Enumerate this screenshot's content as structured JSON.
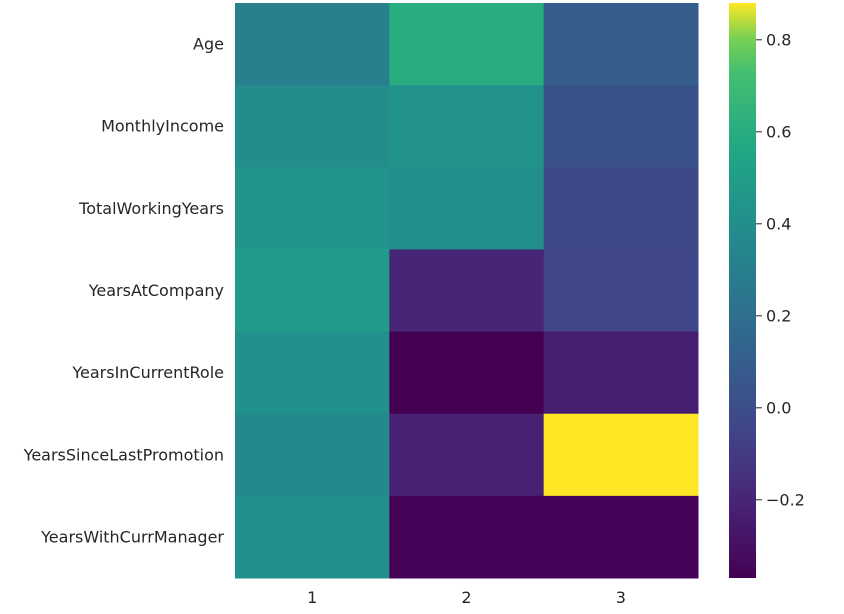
{
  "chart_data": {
    "type": "heatmap",
    "title": "",
    "xlabel": "",
    "ylabel": "",
    "x_categories": [
      "1",
      "2",
      "3"
    ],
    "y_categories": [
      "Age",
      "MonthlyIncome",
      "TotalWorkingYears",
      "YearsAtCompany",
      "YearsInCurrentRole",
      "YearsSinceLastPromotion",
      "YearsWithCurrManager"
    ],
    "values": [
      [
        0.3,
        0.6,
        0.1
      ],
      [
        0.39,
        0.43,
        0.02
      ],
      [
        0.44,
        0.41,
        -0.03
      ],
      [
        0.48,
        -0.2,
        -0.04
      ],
      [
        0.42,
        -0.37,
        -0.23
      ],
      [
        0.36,
        -0.22,
        0.88
      ],
      [
        0.41,
        -0.36,
        -0.36
      ]
    ],
    "colormap": "viridis",
    "vmin": -0.37,
    "vmax": 0.88,
    "colorbar": {
      "ticks": [
        -0.2,
        0.0,
        0.2,
        0.4,
        0.6,
        0.8
      ],
      "tick_labels": [
        "−0.2",
        "0.0",
        "0.2",
        "0.4",
        "0.6",
        "0.8"
      ],
      "position": "right"
    },
    "grid": false
  }
}
